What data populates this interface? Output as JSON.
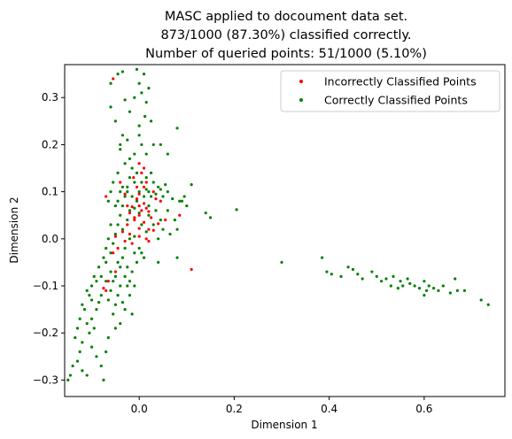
{
  "chart_data": {
    "type": "scatter",
    "title": [
      "MASC applied to docoument data set.",
      "873/1000 (87.30%) classified correctly.",
      "Number of queried points: 51/1000 (5.10%)"
    ],
    "xlabel": "Dimension 1",
    "ylabel": "Dimension 2",
    "xlim": [
      -0.157,
      0.77
    ],
    "ylim": [
      -0.335,
      0.37
    ],
    "xticks": [
      0.0,
      0.2,
      0.4,
      0.6
    ],
    "xtick_labels": [
      "0.0",
      "0.2",
      "0.4",
      "0.6"
    ],
    "yticks": [
      -0.3,
      -0.2,
      -0.1,
      0.0,
      0.1,
      0.2,
      0.3
    ],
    "ytick_labels": [
      "−0.3",
      "−0.2",
      "−0.1",
      "0.0",
      "0.1",
      "0.2",
      "0.3"
    ],
    "grid": false,
    "legend": {
      "placement": "top-right"
    },
    "series": [
      {
        "name": "Incorrectly Classified Points",
        "color": "#ff0000",
        "points": [
          [
            -0.055,
            0.34
          ],
          [
            0.0,
            0.16
          ],
          [
            0.01,
            0.15
          ],
          [
            -0.012,
            0.13
          ],
          [
            0.015,
            0.12
          ],
          [
            0.0,
            0.095
          ],
          [
            -0.005,
            0.085
          ],
          [
            0.01,
            0.075
          ],
          [
            -0.015,
            0.068
          ],
          [
            0.005,
            0.06
          ],
          [
            -0.02,
            0.055
          ],
          [
            0.0,
            0.05
          ],
          [
            0.02,
            0.058
          ],
          [
            -0.01,
            0.04
          ],
          [
            0.01,
            0.035
          ],
          [
            -0.025,
            0.03
          ],
          [
            0.0,
            0.022
          ],
          [
            -0.035,
            0.015
          ],
          [
            -0.02,
            0.01
          ],
          [
            0.0,
            0.005
          ],
          [
            0.02,
            0.02
          ],
          [
            0.04,
            0.032
          ],
          [
            0.055,
            0.04
          ],
          [
            0.03,
            0.018
          ],
          [
            -0.05,
            0.005
          ],
          [
            -0.03,
            -0.005
          ],
          [
            -0.015,
            -0.01
          ],
          [
            0.085,
            0.05
          ],
          [
            -0.04,
            0.12
          ],
          [
            -0.07,
            0.09
          ],
          [
            0.045,
            0.08
          ],
          [
            0.01,
            0.11
          ],
          [
            -0.025,
            0.07
          ],
          [
            0.03,
            0.1
          ],
          [
            -0.01,
            0.045
          ],
          [
            -0.075,
            -0.105
          ],
          [
            -0.07,
            -0.11
          ],
          [
            -0.065,
            -0.09
          ],
          [
            -0.05,
            -0.07
          ],
          [
            0.11,
            -0.065
          ],
          [
            0.02,
            -0.005
          ],
          [
            -0.045,
            -0.02
          ],
          [
            0.015,
            0.065
          ],
          [
            -0.005,
            0.11
          ],
          [
            0.025,
            0.045
          ],
          [
            0.035,
            0.085
          ],
          [
            -0.03,
            0.095
          ],
          [
            0.005,
            0.14
          ],
          [
            0.015,
            0.0
          ],
          [
            -0.055,
            -0.03
          ],
          [
            0.0,
            0.07
          ]
        ]
      },
      {
        "name": "Correctly Classified Points",
        "color": "#008000",
        "points": [
          [
            -0.005,
            0.36
          ],
          [
            0.01,
            0.35
          ],
          [
            -0.035,
            0.355
          ],
          [
            -0.045,
            0.35
          ],
          [
            -0.06,
            0.33
          ],
          [
            0.0,
            0.33
          ],
          [
            0.02,
            0.32
          ],
          [
            0.005,
            0.31
          ],
          [
            -0.01,
            0.3
          ],
          [
            0.015,
            0.29
          ],
          [
            -0.03,
            0.295
          ],
          [
            0.08,
            0.235
          ],
          [
            -0.06,
            0.28
          ],
          [
            0.025,
            0.25
          ],
          [
            -0.02,
            0.27
          ],
          [
            0.012,
            0.26
          ],
          [
            0.0,
            0.24
          ],
          [
            0.0,
            0.22
          ],
          [
            -0.025,
            0.21
          ],
          [
            0.03,
            0.2
          ],
          [
            0.045,
            0.2
          ],
          [
            -0.04,
            0.19
          ],
          [
            0.06,
            0.18
          ],
          [
            0.015,
            0.18
          ],
          [
            0.11,
            0.115
          ],
          [
            0.14,
            0.055
          ],
          [
            0.15,
            0.045
          ],
          [
            0.205,
            0.062
          ],
          [
            0.085,
            0.08
          ],
          [
            0.08,
            0.02
          ],
          [
            0.075,
            0.04
          ],
          [
            0.065,
            0.01
          ],
          [
            0.08,
            -0.04
          ],
          [
            0.04,
            -0.05
          ],
          [
            -0.01,
            0.005
          ],
          [
            0.3,
            -0.05
          ],
          [
            0.385,
            -0.04
          ],
          [
            0.395,
            -0.07
          ],
          [
            0.405,
            -0.075
          ],
          [
            0.425,
            -0.08
          ],
          [
            0.44,
            -0.06
          ],
          [
            0.45,
            -0.065
          ],
          [
            0.46,
            -0.075
          ],
          [
            0.47,
            -0.085
          ],
          [
            0.49,
            -0.07
          ],
          [
            0.5,
            -0.08
          ],
          [
            0.51,
            -0.09
          ],
          [
            0.52,
            -0.085
          ],
          [
            0.53,
            -0.1
          ],
          [
            0.535,
            -0.08
          ],
          [
            0.55,
            -0.09
          ],
          [
            0.555,
            -0.1
          ],
          [
            0.565,
            -0.085
          ],
          [
            0.57,
            -0.095
          ],
          [
            0.58,
            -0.1
          ],
          [
            0.59,
            -0.105
          ],
          [
            0.6,
            -0.09
          ],
          [
            0.605,
            -0.11
          ],
          [
            0.61,
            -0.1
          ],
          [
            0.62,
            -0.105
          ],
          [
            0.63,
            -0.11
          ],
          [
            0.64,
            -0.1
          ],
          [
            0.655,
            -0.115
          ],
          [
            0.665,
            -0.085
          ],
          [
            0.67,
            -0.11
          ],
          [
            0.685,
            -0.11
          ],
          [
            0.72,
            -0.13
          ],
          [
            0.735,
            -0.14
          ],
          [
            0.6,
            -0.12
          ],
          [
            0.545,
            -0.105
          ],
          [
            -0.045,
            -0.05
          ],
          [
            -0.04,
            -0.06
          ],
          [
            -0.05,
            -0.08
          ],
          [
            -0.06,
            -0.07
          ],
          [
            -0.07,
            -0.09
          ],
          [
            -0.08,
            -0.12
          ],
          [
            -0.085,
            -0.135
          ],
          [
            -0.09,
            -0.15
          ],
          [
            -0.1,
            -0.17
          ],
          [
            -0.11,
            -0.18
          ],
          [
            -0.095,
            -0.19
          ],
          [
            -0.105,
            -0.2
          ],
          [
            -0.12,
            -0.22
          ],
          [
            -0.125,
            -0.24
          ],
          [
            -0.13,
            -0.26
          ],
          [
            -0.14,
            -0.27
          ],
          [
            -0.145,
            -0.29
          ],
          [
            -0.15,
            -0.3
          ],
          [
            -0.12,
            -0.28
          ],
          [
            -0.11,
            -0.29
          ],
          [
            -0.075,
            -0.3
          ],
          [
            -0.07,
            -0.24
          ],
          [
            -0.065,
            -0.21
          ],
          [
            -0.05,
            -0.19
          ],
          [
            -0.03,
            -0.15
          ],
          [
            -0.02,
            -0.12
          ],
          [
            -0.015,
            -0.16
          ],
          [
            -0.04,
            -0.18
          ],
          [
            -0.055,
            -0.16
          ],
          [
            -0.025,
            -0.1
          ],
          [
            -0.12,
            -0.14
          ],
          [
            -0.1,
            -0.13
          ],
          [
            -0.11,
            -0.11
          ],
          [
            -0.09,
            -0.09
          ],
          [
            -0.08,
            -0.08
          ],
          [
            -0.07,
            -0.05
          ],
          [
            -0.06,
            -0.03
          ],
          [
            -0.055,
            -0.01
          ],
          [
            -0.05,
            0.01
          ],
          [
            -0.045,
            0.03
          ],
          [
            -0.04,
            0.05
          ],
          [
            -0.035,
            0.07
          ],
          [
            -0.03,
            0.09
          ],
          [
            -0.025,
            0.11
          ],
          [
            -0.02,
            0.13
          ],
          [
            -0.015,
            0.15
          ],
          [
            -0.03,
            0.16
          ],
          [
            -0.045,
            0.14
          ],
          [
            -0.055,
            0.12
          ],
          [
            -0.06,
            0.1
          ],
          [
            -0.065,
            0.08
          ],
          [
            -0.05,
            0.07
          ],
          [
            -0.04,
            0.1
          ],
          [
            -0.01,
            0.12
          ],
          [
            0.0,
            0.1
          ],
          [
            0.01,
            0.09
          ],
          [
            0.02,
            0.1
          ],
          [
            0.03,
            0.12
          ],
          [
            0.04,
            0.11
          ],
          [
            0.05,
            0.09
          ],
          [
            0.06,
            0.1
          ],
          [
            0.07,
            0.085
          ],
          [
            0.09,
            0.08
          ],
          [
            0.1,
            0.07
          ],
          [
            0.095,
            0.09
          ],
          [
            -0.02,
            0.0
          ],
          [
            -0.03,
            -0.02
          ],
          [
            -0.01,
            -0.03
          ],
          [
            0.0,
            -0.02
          ],
          [
            0.01,
            -0.04
          ],
          [
            -0.035,
            -0.04
          ],
          [
            -0.025,
            -0.06
          ],
          [
            -0.015,
            -0.07
          ],
          [
            -0.005,
            -0.05
          ],
          [
            0.005,
            -0.03
          ],
          [
            -0.045,
            0.08
          ],
          [
            -0.035,
            0.11
          ],
          [
            -0.025,
            0.1
          ],
          [
            -0.015,
            0.09
          ],
          [
            -0.005,
            0.08
          ],
          [
            0.005,
            0.12
          ],
          [
            0.015,
            0.13
          ],
          [
            0.025,
            0.14
          ],
          [
            -0.005,
            0.14
          ],
          [
            -0.02,
            0.17
          ],
          [
            -0.01,
            0.18
          ],
          [
            0.005,
            0.2
          ],
          [
            -0.035,
            0.22
          ],
          [
            -0.05,
            0.25
          ],
          [
            -0.04,
            0.2
          ],
          [
            -0.06,
            0.03
          ],
          [
            -0.065,
            0.0
          ],
          [
            -0.07,
            -0.02
          ],
          [
            -0.075,
            -0.04
          ],
          [
            -0.085,
            -0.06
          ],
          [
            -0.095,
            -0.08
          ],
          [
            -0.1,
            -0.1
          ],
          [
            -0.105,
            -0.12
          ],
          [
            -0.115,
            -0.15
          ],
          [
            -0.125,
            -0.17
          ],
          [
            -0.13,
            -0.19
          ],
          [
            -0.135,
            -0.21
          ],
          [
            -0.1,
            -0.23
          ],
          [
            -0.09,
            -0.25
          ],
          [
            -0.08,
            -0.27
          ],
          [
            -0.065,
            -0.13
          ],
          [
            -0.06,
            -0.11
          ],
          [
            -0.04,
            -0.1
          ],
          [
            -0.03,
            -0.08
          ],
          [
            -0.045,
            -0.12
          ],
          [
            -0.05,
            -0.14
          ],
          [
            -0.035,
            -0.135
          ],
          [
            -0.02,
            -0.09
          ],
          [
            -0.01,
            -0.1
          ],
          [
            -0.055,
            -0.09
          ],
          [
            0.02,
            0.05
          ],
          [
            0.035,
            0.06
          ],
          [
            0.045,
            0.04
          ],
          [
            0.06,
            0.06
          ],
          [
            0.02,
            0.07
          ],
          [
            0.03,
            0.03
          ],
          [
            0.015,
            0.015
          ],
          [
            0.005,
            0.03
          ],
          [
            0.04,
            0.0
          ],
          [
            0.05,
            0.02
          ],
          [
            -0.02,
            0.06
          ],
          [
            -0.01,
            0.065
          ],
          [
            0.0,
            0.055
          ],
          [
            -0.025,
            0.04
          ],
          [
            -0.035,
            0.02
          ],
          [
            0.025,
            0.09
          ],
          [
            0.035,
            0.095
          ],
          [
            0.045,
            0.105
          ],
          [
            0.055,
            0.115
          ],
          [
            0.015,
            0.105
          ]
        ]
      }
    ]
  }
}
